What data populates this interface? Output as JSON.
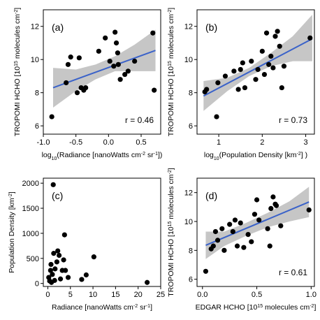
{
  "chart_data": [
    {
      "type": "scatter",
      "panel_label": "(a)",
      "ylabel_parts": [
        "TROPOMI HCHO [10",
        "15",
        " molecules cm",
        "-2",
        "]"
      ],
      "xlabel_parts": [
        "log",
        "10",
        "(Radiance [nanoWatts cm",
        "-2",
        " sr",
        "-1",
        "])"
      ],
      "xlim": [
        -1.0,
        0.8
      ],
      "ylim": [
        5.5,
        13.0
      ],
      "xticks": [
        -1.0,
        -0.5,
        0.0,
        0.5
      ],
      "xtick_labels": [
        "-1.0",
        "-0.5",
        "0.0",
        "0.5"
      ],
      "yticks": [
        6,
        8,
        10,
        12
      ],
      "ytick_labels": [
        "6",
        "8",
        "10",
        "12"
      ],
      "stat": "r = 0.46",
      "regression": true,
      "fit": {
        "x": [
          -0.85,
          0.72
        ],
        "y": [
          8.3,
          10.55
        ]
      },
      "band_upper": [
        [
          -0.85,
          9.5
        ],
        [
          -0.5,
          9.4
        ],
        [
          -0.2,
          9.7
        ],
        [
          0.1,
          10.2
        ],
        [
          0.4,
          10.9
        ],
        [
          0.72,
          11.8
        ]
      ],
      "band_lower": [
        [
          -0.85,
          7.1
        ],
        [
          -0.5,
          8.1
        ],
        [
          -0.2,
          8.8
        ],
        [
          0.1,
          9.3
        ],
        [
          0.4,
          9.3
        ],
        [
          0.72,
          9.3
        ]
      ],
      "points": [
        {
          "x": -0.87,
          "y": 6.55
        },
        {
          "x": -0.65,
          "y": 8.6
        },
        {
          "x": -0.62,
          "y": 9.7
        },
        {
          "x": -0.58,
          "y": 10.15
        },
        {
          "x": -0.48,
          "y": 8.0
        },
        {
          "x": -0.42,
          "y": 8.3
        },
        {
          "x": -0.38,
          "y": 8.15
        },
        {
          "x": -0.35,
          "y": 8.3
        },
        {
          "x": -0.45,
          "y": 10.1
        },
        {
          "x": -0.15,
          "y": 10.5
        },
        {
          "x": -0.05,
          "y": 11.3
        },
        {
          "x": 0.02,
          "y": 9.9
        },
        {
          "x": 0.08,
          "y": 9.6
        },
        {
          "x": 0.1,
          "y": 11.65
        },
        {
          "x": 0.12,
          "y": 11.0
        },
        {
          "x": 0.14,
          "y": 10.4
        },
        {
          "x": 0.15,
          "y": 9.7
        },
        {
          "x": 0.18,
          "y": 8.8
        },
        {
          "x": 0.25,
          "y": 9.1
        },
        {
          "x": 0.3,
          "y": 9.3
        },
        {
          "x": 0.4,
          "y": 9.9
        },
        {
          "x": 0.68,
          "y": 11.6
        },
        {
          "x": 0.7,
          "y": 8.15
        }
      ]
    },
    {
      "type": "scatter",
      "panel_label": "(b)",
      "ylabel_parts": [
        "TROPOMI HCHO [10",
        "15",
        " molecules cm",
        "-2",
        "]"
      ],
      "xlabel_parts": [
        "log",
        "10",
        "(Population Density [km",
        "-2",
        "] )"
      ],
      "xlim": [
        0.5,
        3.2
      ],
      "ylim": [
        5.5,
        13.0
      ],
      "xticks": [
        1,
        2,
        3
      ],
      "xtick_labels": [
        "1",
        "2",
        "3"
      ],
      "yticks": [
        6,
        8,
        10,
        12
      ],
      "ytick_labels": [
        "6",
        "8",
        "10",
        "12"
      ],
      "stat": "r = 0.73",
      "regression": true,
      "fit": {
        "x": [
          0.65,
          3.15
        ],
        "y": [
          7.8,
          11.25
        ]
      },
      "band_upper": [
        [
          0.65,
          8.7
        ],
        [
          1.2,
          8.9
        ],
        [
          1.7,
          9.5
        ],
        [
          2.2,
          10.4
        ],
        [
          2.7,
          11.4
        ],
        [
          3.15,
          12.7
        ]
      ],
      "band_lower": [
        [
          0.65,
          6.9
        ],
        [
          1.2,
          8.1
        ],
        [
          1.7,
          9.0
        ],
        [
          2.2,
          9.6
        ],
        [
          2.7,
          9.9
        ],
        [
          3.15,
          9.9
        ]
      ],
      "points": [
        {
          "x": 0.68,
          "y": 8.05
        },
        {
          "x": 0.72,
          "y": 8.2
        },
        {
          "x": 0.95,
          "y": 6.55
        },
        {
          "x": 0.98,
          "y": 8.6
        },
        {
          "x": 1.15,
          "y": 9.0
        },
        {
          "x": 1.35,
          "y": 9.3
        },
        {
          "x": 1.45,
          "y": 8.2
        },
        {
          "x": 1.5,
          "y": 9.4
        },
        {
          "x": 1.55,
          "y": 9.8
        },
        {
          "x": 1.6,
          "y": 8.3
        },
        {
          "x": 1.75,
          "y": 9.9
        },
        {
          "x": 1.85,
          "y": 8.8
        },
        {
          "x": 1.9,
          "y": 9.4
        },
        {
          "x": 2.0,
          "y": 10.5
        },
        {
          "x": 2.05,
          "y": 9.1
        },
        {
          "x": 2.1,
          "y": 11.6
        },
        {
          "x": 2.15,
          "y": 9.7
        },
        {
          "x": 2.2,
          "y": 10.2
        },
        {
          "x": 2.25,
          "y": 9.5
        },
        {
          "x": 2.3,
          "y": 11.4
        },
        {
          "x": 2.35,
          "y": 11.7
        },
        {
          "x": 2.4,
          "y": 10.8
        },
        {
          "x": 2.45,
          "y": 8.3
        },
        {
          "x": 2.5,
          "y": 9.6
        },
        {
          "x": 3.1,
          "y": 11.3
        }
      ]
    },
    {
      "type": "scatter",
      "panel_label": "(c)",
      "ylabel_parts": [
        "Population Density [km",
        "-2",
        "]"
      ],
      "xlabel_parts": [
        "Radiance [nanoWatts cm",
        "-2",
        " sr",
        "-1",
        "]"
      ],
      "xlim": [
        -1,
        25
      ],
      "ylim": [
        -60,
        2100
      ],
      "xticks": [
        0,
        5,
        10,
        15,
        20,
        25
      ],
      "xtick_labels": [
        "0",
        "5",
        "10",
        "15",
        "20",
        "25"
      ],
      "yticks": [
        0,
        500,
        1000,
        1500,
        2000
      ],
      "ytick_labels": [
        "0",
        "500",
        "1000",
        "1500",
        "2000"
      ],
      "stat": "",
      "regression": false,
      "points": [
        {
          "x": 1.2,
          "y": 1970
        },
        {
          "x": 0.2,
          "y": 120
        },
        {
          "x": 0.4,
          "y": 50
        },
        {
          "x": 0.6,
          "y": 260
        },
        {
          "x": 0.7,
          "y": 380
        },
        {
          "x": 0.8,
          "y": 20
        },
        {
          "x": 1.0,
          "y": 180
        },
        {
          "x": 1.3,
          "y": 600
        },
        {
          "x": 1.5,
          "y": 60
        },
        {
          "x": 1.6,
          "y": 290
        },
        {
          "x": 2.0,
          "y": 430
        },
        {
          "x": 2.2,
          "y": 650
        },
        {
          "x": 2.5,
          "y": 560
        },
        {
          "x": 2.8,
          "y": 90
        },
        {
          "x": 3.2,
          "y": 260
        },
        {
          "x": 3.5,
          "y": 470
        },
        {
          "x": 3.7,
          "y": 970
        },
        {
          "x": 3.9,
          "y": 260
        },
        {
          "x": 4.5,
          "y": 120
        },
        {
          "x": 7.5,
          "y": 80
        },
        {
          "x": 8.5,
          "y": 170
        },
        {
          "x": 10.2,
          "y": 530
        },
        {
          "x": 22.0,
          "y": 20
        }
      ]
    },
    {
      "type": "scatter",
      "panel_label": "(d)",
      "ylabel_parts": [
        "TROPOMI HCHO [10",
        "15",
        " molecules cm",
        "-2",
        "]"
      ],
      "xlabel_parts": [
        "EDGAR HCHO [10",
        "15",
        " molecules cm",
        "-2",
        "]"
      ],
      "xlim": [
        -0.05,
        1.03
      ],
      "ylim": [
        5.5,
        13.0
      ],
      "xticks": [
        0.0,
        0.5,
        1.0
      ],
      "xtick_labels": [
        "0.0",
        "0.5",
        "1.0"
      ],
      "yticks": [
        6,
        8,
        10,
        12
      ],
      "ytick_labels": [
        "6",
        "8",
        "10",
        "12"
      ],
      "stat": "r = 0.61",
      "regression": true,
      "fit": {
        "x": [
          0.03,
          0.98
        ],
        "y": [
          8.35,
          11.35
        ]
      },
      "band_upper": [
        [
          0.03,
          9.3
        ],
        [
          0.2,
          9.3
        ],
        [
          0.4,
          9.9
        ],
        [
          0.6,
          10.6
        ],
        [
          0.8,
          11.4
        ],
        [
          0.98,
          12.4
        ]
      ],
      "band_lower": [
        [
          0.03,
          7.4
        ],
        [
          0.2,
          8.3
        ],
        [
          0.4,
          9.0
        ],
        [
          0.6,
          9.6
        ],
        [
          0.8,
          10.0
        ],
        [
          0.98,
          10.3
        ]
      ],
      "points": [
        {
          "x": 0.03,
          "y": 6.55
        },
        {
          "x": 0.08,
          "y": 8.1
        },
        {
          "x": 0.1,
          "y": 8.3
        },
        {
          "x": 0.12,
          "y": 9.3
        },
        {
          "x": 0.14,
          "y": 8.7
        },
        {
          "x": 0.18,
          "y": 9.5
        },
        {
          "x": 0.2,
          "y": 8.0
        },
        {
          "x": 0.25,
          "y": 9.8
        },
        {
          "x": 0.28,
          "y": 9.3
        },
        {
          "x": 0.3,
          "y": 10.1
        },
        {
          "x": 0.32,
          "y": 8.3
        },
        {
          "x": 0.35,
          "y": 9.9
        },
        {
          "x": 0.38,
          "y": 8.2
        },
        {
          "x": 0.42,
          "y": 9.1
        },
        {
          "x": 0.45,
          "y": 8.6
        },
        {
          "x": 0.48,
          "y": 10.5
        },
        {
          "x": 0.5,
          "y": 11.5
        },
        {
          "x": 0.52,
          "y": 10.1
        },
        {
          "x": 0.6,
          "y": 9.5
        },
        {
          "x": 0.62,
          "y": 8.3
        },
        {
          "x": 0.63,
          "y": 10.9
        },
        {
          "x": 0.65,
          "y": 11.7
        },
        {
          "x": 0.67,
          "y": 11.2
        },
        {
          "x": 0.68,
          "y": 11.1
        },
        {
          "x": 0.72,
          "y": 9.7
        },
        {
          "x": 0.98,
          "y": 10.8
        }
      ]
    }
  ],
  "colors": {
    "point": "#000000",
    "fit_line": "#3a62c9",
    "band": "#b8b8b8",
    "axis": "#000000",
    "background": "#ffffff"
  }
}
